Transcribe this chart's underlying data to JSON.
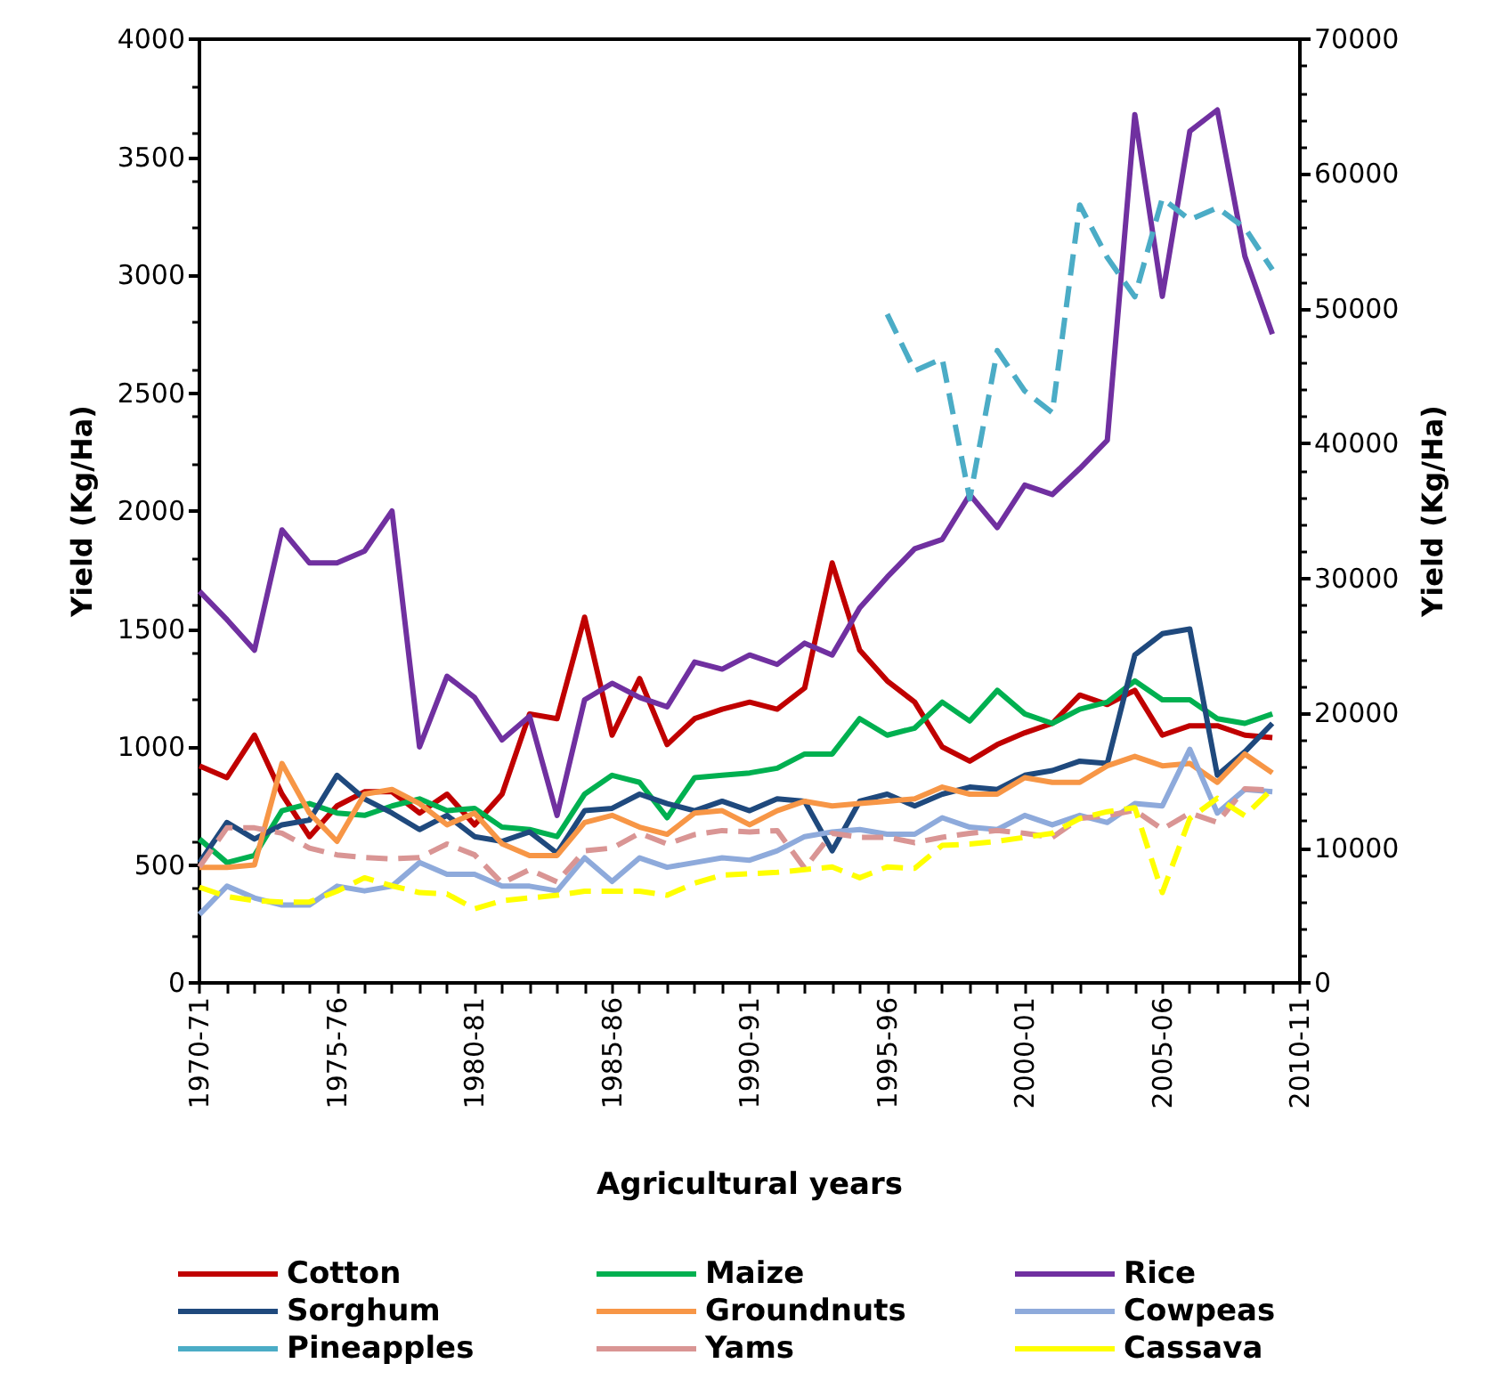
{
  "chart_data": {
    "type": "line",
    "xlabel": "Agricultural years",
    "ylabel": "Yield (Kg/Ha)",
    "y2label": "Yield (Kg/Ha)",
    "categories": [
      "1970-71",
      null,
      null,
      null,
      null,
      "1975-76",
      null,
      null,
      null,
      null,
      "1980-81",
      null,
      null,
      null,
      null,
      "1985-86",
      null,
      null,
      null,
      null,
      "1990-91",
      null,
      null,
      null,
      null,
      "1995-96",
      null,
      null,
      null,
      null,
      "2000-01",
      null,
      null,
      null,
      null,
      "2005-06",
      null,
      null,
      null,
      null,
      "2010-11"
    ],
    "ylim": [
      0,
      4000
    ],
    "yticks": [
      0,
      500,
      1000,
      1500,
      2000,
      2500,
      3000,
      3500,
      4000
    ],
    "y2lim": [
      0,
      70000
    ],
    "y2ticks": [
      0,
      10000,
      20000,
      30000,
      40000,
      50000,
      60000,
      70000
    ],
    "grid": false,
    "legend": "bottom",
    "marker": "none",
    "line_style": "solid",
    "series": [
      {
        "name": "Cotton",
        "color": "#c00000",
        "values": [
          920,
          870,
          1050,
          800,
          620,
          750,
          810,
          810,
          720,
          800,
          670,
          800,
          1140,
          1120,
          1550,
          1050,
          1290,
          1010,
          1120,
          1160,
          1190,
          1160,
          1250,
          1780,
          1410,
          1280,
          1190,
          1000,
          940,
          1010,
          1060,
          1100,
          1220,
          1180,
          1240,
          1050,
          1090,
          1090,
          1050,
          1040,
          null
        ]
      },
      {
        "name": "Maize",
        "color": "#00b050",
        "values": [
          610,
          510,
          540,
          730,
          760,
          720,
          710,
          750,
          780,
          730,
          740,
          660,
          650,
          620,
          800,
          880,
          850,
          700,
          870,
          880,
          890,
          910,
          970,
          970,
          1120,
          1050,
          1080,
          1190,
          1110,
          1240,
          1140,
          1100,
          1160,
          1190,
          1280,
          1200,
          1200,
          1120,
          1100,
          1140,
          null
        ]
      },
      {
        "name": "Rice",
        "color": "#7030a0",
        "values": [
          1660,
          1540,
          1410,
          1920,
          1780,
          1780,
          1830,
          2000,
          1000,
          1300,
          1210,
          1030,
          1130,
          710,
          1200,
          1270,
          1210,
          1170,
          1360,
          1330,
          1390,
          1350,
          1440,
          1390,
          1590,
          1720,
          1840,
          1880,
          2070,
          1930,
          2110,
          2070,
          2180,
          2300,
          3680,
          2910,
          3610,
          3700,
          3080,
          2750,
          null
        ]
      },
      {
        "name": "Sorghum",
        "color": "#1f497d",
        "values": [
          510,
          680,
          610,
          670,
          690,
          880,
          780,
          720,
          650,
          710,
          620,
          600,
          640,
          550,
          730,
          740,
          800,
          760,
          730,
          770,
          730,
          780,
          770,
          560,
          770,
          800,
          750,
          800,
          830,
          820,
          880,
          900,
          940,
          930,
          1390,
          1480,
          1500,
          880,
          980,
          1100,
          null
        ]
      },
      {
        "name": "Groundnuts",
        "color": "#f79646",
        "values": [
          490,
          490,
          500,
          930,
          720,
          600,
          800,
          820,
          760,
          670,
          720,
          590,
          540,
          540,
          680,
          710,
          660,
          630,
          720,
          730,
          670,
          730,
          770,
          750,
          760,
          770,
          780,
          830,
          800,
          800,
          870,
          850,
          850,
          920,
          960,
          920,
          930,
          850,
          970,
          890,
          null
        ]
      },
      {
        "name": "Cowpeas",
        "color": "#8eaadb",
        "values": [
          290,
          410,
          360,
          330,
          330,
          410,
          390,
          410,
          510,
          460,
          460,
          410,
          410,
          390,
          530,
          430,
          530,
          490,
          510,
          530,
          520,
          560,
          620,
          640,
          650,
          630,
          630,
          700,
          660,
          650,
          710,
          670,
          710,
          680,
          760,
          750,
          990,
          720,
          820,
          810,
          null
        ]
      },
      {
        "name": "Pineapples",
        "color": "#4bacc6",
        "axis": "y2",
        "line_style": "dashed",
        "values": [
          null,
          null,
          null,
          null,
          null,
          null,
          null,
          null,
          null,
          null,
          null,
          null,
          null,
          null,
          null,
          null,
          null,
          null,
          null,
          null,
          null,
          null,
          null,
          null,
          null,
          49600,
          45400,
          46300,
          35900,
          46900,
          43900,
          42300,
          57700,
          53800,
          50900,
          58200,
          56600,
          57500,
          56000,
          52900,
          null
        ]
      },
      {
        "name": "Yams",
        "color": "#d99594",
        "axis": "y2",
        "line_style": "dashed",
        "values": [
          8600,
          11500,
          11500,
          11100,
          10000,
          9500,
          9300,
          9200,
          9300,
          10300,
          9500,
          7400,
          8400,
          7500,
          9800,
          10000,
          11100,
          10300,
          11000,
          11300,
          11200,
          11300,
          8500,
          11100,
          10800,
          10800,
          10400,
          10800,
          11100,
          11300,
          11100,
          10800,
          12200,
          12400,
          12800,
          11400,
          12600,
          11900,
          14400,
          14300,
          null
        ]
      },
      {
        "name": "Cassava",
        "color": "#ffff00",
        "axis": "y2",
        "line_style": "dashed",
        "values": [
          7100,
          6400,
          6100,
          6000,
          6000,
          6800,
          7800,
          7200,
          6700,
          6600,
          5500,
          6100,
          6300,
          6500,
          6800,
          6800,
          6800,
          6500,
          7400,
          8000,
          8100,
          8200,
          8400,
          8600,
          7800,
          8600,
          8500,
          10200,
          10300,
          10500,
          10800,
          11100,
          12200,
          12700,
          13000,
          6700,
          12200,
          13700,
          12400,
          14400,
          null
        ]
      }
    ]
  }
}
